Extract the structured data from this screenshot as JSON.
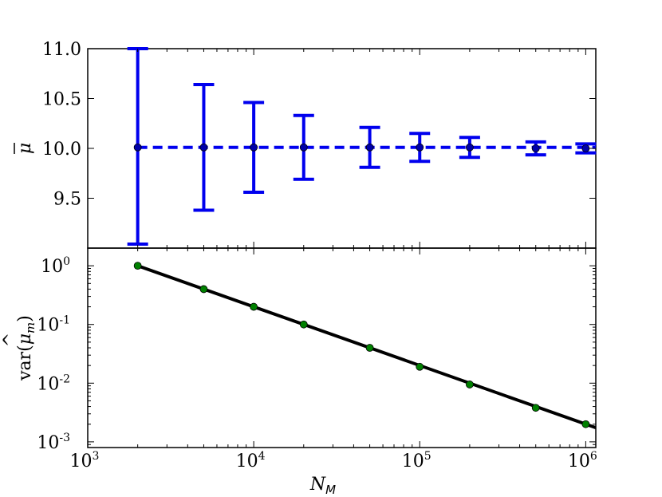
{
  "chart_data": [
    {
      "type": "scatter",
      "panel": "top",
      "xscale": "log",
      "xlim": [
        1000,
        1150000
      ],
      "ylim": [
        9.0,
        11.0
      ],
      "ylabel": "μ̄",
      "y_ticks": [
        "9.5",
        "10.0",
        "10.5",
        "11.0"
      ],
      "series": [
        {
          "x": [
            2000,
            5000,
            10000,
            20000,
            50000,
            100000,
            200000,
            500000,
            1000000
          ],
          "y": [
            10.01,
            10.01,
            10.01,
            10.01,
            10.01,
            10.01,
            10.01,
            10.0,
            10.0
          ],
          "yerr": [
            0.99,
            0.63,
            0.45,
            0.32,
            0.2,
            0.14,
            0.1,
            0.065,
            0.045
          ],
          "color": "#0000ee",
          "style": "errorbar"
        }
      ],
      "reference_line": {
        "y": 10.01,
        "style": "dashed",
        "color": "#0000ee"
      }
    },
    {
      "type": "line",
      "panel": "bottom",
      "xscale": "log",
      "yscale": "log",
      "xlim": [
        1000,
        1150000
      ],
      "ylim": [
        0.0008,
        2.0
      ],
      "xlabel": "N_M",
      "ylabel": "var(μ̂_m)",
      "x_ticks": [
        "10^3",
        "10^4",
        "10^5",
        "10^6"
      ],
      "y_ticks": [
        "10^-3",
        "10^-2",
        "10^-1",
        "10^0"
      ],
      "series": [
        {
          "x": [
            2000,
            5000,
            10000,
            20000,
            50000,
            100000,
            200000,
            500000,
            1000000
          ],
          "y": [
            1.0,
            0.4,
            0.2,
            0.1,
            0.04,
            0.019,
            0.0095,
            0.0038,
            0.002
          ],
          "marker_color": "#008000",
          "style": "markers"
        },
        {
          "x": [
            2000,
            1150000
          ],
          "y": [
            1.0,
            0.00174
          ],
          "color": "#000000",
          "style": "line"
        }
      ]
    }
  ]
}
